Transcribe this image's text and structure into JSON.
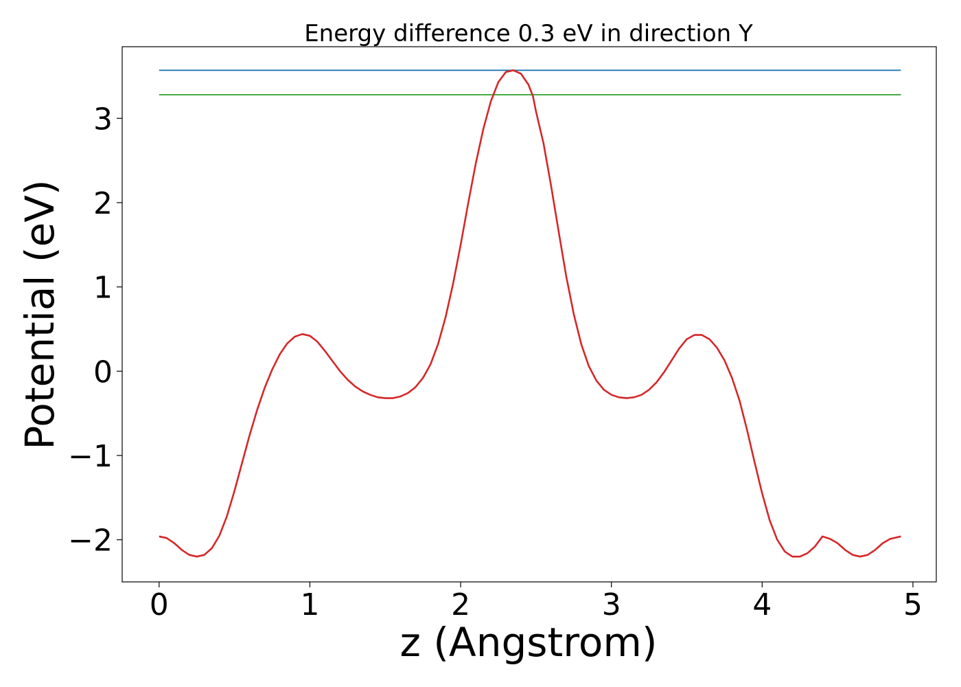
{
  "chart_data": {
    "type": "line",
    "title": "Energy difference 0.3 eV in direction Y",
    "xlabel": "z (Angstrom)",
    "ylabel": "Potential (eV)",
    "xlim": [
      -0.245,
      5.155
    ],
    "ylim": [
      -2.5,
      3.85
    ],
    "x_ticks": [
      0,
      1,
      2,
      3,
      4,
      5
    ],
    "x_tick_labels": [
      "0",
      "1",
      "2",
      "3",
      "4",
      "5"
    ],
    "y_ticks": [
      -2,
      -1,
      0,
      1,
      2,
      3
    ],
    "y_tick_labels": [
      "−2",
      "−1",
      "0",
      "1",
      "2",
      "3"
    ],
    "grid": false,
    "series": [
      {
        "color": "#1f77b4",
        "x": [
          0,
          4.92
        ],
        "y": [
          3.57,
          3.57
        ]
      },
      {
        "color": "#2ca02c",
        "x": [
          0,
          4.92
        ],
        "y": [
          3.28,
          3.28
        ]
      },
      {
        "color": "#d62728",
        "x": [
          0,
          0.05,
          0.1,
          0.15,
          0.2,
          0.25,
          0.3,
          0.35,
          0.4,
          0.45,
          0.5,
          0.55,
          0.6,
          0.65,
          0.7,
          0.75,
          0.8,
          0.85,
          0.9,
          0.95,
          1.0,
          1.05,
          1.1,
          1.15,
          1.2,
          1.25,
          1.3,
          1.35,
          1.4,
          1.45,
          1.5,
          1.55,
          1.6,
          1.65,
          1.7,
          1.75,
          1.8,
          1.85,
          1.9,
          1.95,
          2.0,
          2.05,
          2.1,
          2.15,
          2.2,
          2.25,
          2.3,
          2.35,
          2.4,
          2.45,
          2.48,
          2.5,
          2.55,
          2.6,
          2.65,
          2.7,
          2.75,
          2.8,
          2.85,
          2.9,
          2.95,
          3.0,
          3.05,
          3.1,
          3.15,
          3.2,
          3.25,
          3.3,
          3.35,
          3.4,
          3.45,
          3.5,
          3.55,
          3.6,
          3.65,
          3.7,
          3.75,
          3.8,
          3.85,
          3.9,
          3.95,
          4.0,
          4.05,
          4.1,
          4.15,
          4.2,
          4.25,
          4.3,
          4.35,
          4.4,
          4.45,
          4.5,
          4.55,
          4.6,
          4.65,
          4.7,
          4.75,
          4.8,
          4.85,
          4.92
        ],
        "y": [
          -1.96,
          -1.98,
          -2.04,
          -2.12,
          -2.18,
          -2.2,
          -2.18,
          -2.1,
          -1.95,
          -1.72,
          -1.42,
          -1.09,
          -0.76,
          -0.46,
          -0.2,
          0.02,
          0.2,
          0.33,
          0.41,
          0.44,
          0.42,
          0.35,
          0.24,
          0.12,
          0.0,
          -0.1,
          -0.18,
          -0.24,
          -0.28,
          -0.31,
          -0.32,
          -0.32,
          -0.3,
          -0.26,
          -0.19,
          -0.08,
          0.08,
          0.32,
          0.64,
          1.04,
          1.5,
          1.99,
          2.46,
          2.87,
          3.2,
          3.43,
          3.55,
          3.57,
          3.53,
          3.4,
          3.26,
          3.08,
          2.7,
          2.2,
          1.66,
          1.13,
          0.68,
          0.32,
          0.06,
          -0.11,
          -0.22,
          -0.28,
          -0.31,
          -0.32,
          -0.31,
          -0.28,
          -0.22,
          -0.13,
          -0.01,
          0.13,
          0.27,
          0.38,
          0.43,
          0.43,
          0.38,
          0.28,
          0.13,
          -0.08,
          -0.35,
          -0.7,
          -1.08,
          -1.45,
          -1.77,
          -2.0,
          -2.14,
          -2.2,
          -2.2,
          -2.16,
          -2.08,
          -1.96,
          -1.99,
          -2.04,
          -2.12,
          -2.18,
          -2.2,
          -2.18,
          -2.12,
          -2.04,
          -1.99,
          -1.96
        ]
      }
    ]
  }
}
